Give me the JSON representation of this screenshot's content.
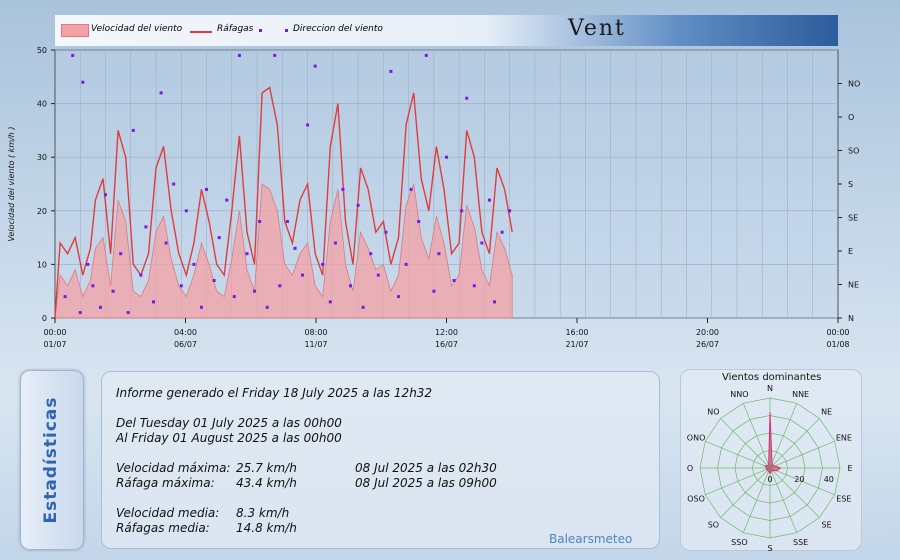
{
  "legend": {
    "items": [
      {
        "label": "Velocidad del viento",
        "kind": "area",
        "color": "#f4a0a4"
      },
      {
        "label": "Ráfagas",
        "kind": "line",
        "color": "#e23b3b"
      },
      {
        "label": "Direccion del viento",
        "kind": "dots",
        "color": "#7a18e6"
      }
    ]
  },
  "header": {
    "title": "Vent"
  },
  "chart_data": {
    "type": "line",
    "ylabel": "Velocidad del viento  ( km/h )",
    "ylim": [
      0,
      50
    ],
    "yticks": [
      "0",
      "10",
      "20",
      "30",
      "40",
      "50"
    ],
    "y2ticks": [
      "N",
      "NE",
      "E",
      "SE",
      "S",
      "SO",
      "O",
      "NO"
    ],
    "xlim_days": [
      0,
      31
    ],
    "xticks": [
      {
        "time": "00:00",
        "date": "01/07"
      },
      {
        "time": "04:00",
        "date": "06/07"
      },
      {
        "time": "08:00",
        "date": "11/07"
      },
      {
        "time": "12:00",
        "date": "16/07"
      },
      {
        "time": "16:00",
        "date": "21/07"
      },
      {
        "time": "20:00",
        "date": "26/07"
      },
      {
        "time": "00:00",
        "date": "01/08"
      }
    ],
    "grid": true,
    "series": [
      {
        "name": "Ráfagas",
        "color": "#e23b3b",
        "x": [
          0.0,
          0.2,
          0.5,
          0.8,
          1.1,
          1.4,
          1.6,
          1.9,
          2.2,
          2.5,
          2.8,
          3.1,
          3.4,
          3.7,
          4.0,
          4.3,
          4.6,
          4.9,
          5.2,
          5.5,
          5.8,
          6.1,
          6.4,
          6.7,
          7.0,
          7.3,
          7.6,
          7.9,
          8.2,
          8.5,
          8.8,
          9.1,
          9.4,
          9.7,
          10.0,
          10.3,
          10.6,
          10.9,
          11.2,
          11.5,
          11.8,
          12.1,
          12.4,
          12.7,
          13.0,
          13.3,
          13.6,
          13.9,
          14.2,
          14.5,
          14.8,
          15.1,
          15.4,
          15.7,
          16.0,
          16.3,
          16.6,
          16.9,
          17.2,
          17.5,
          17.8,
          18.1
        ],
        "values": [
          0,
          14,
          12,
          15,
          8,
          13,
          22,
          26,
          12,
          35,
          30,
          10,
          8,
          12,
          28,
          32,
          20,
          12,
          8,
          14,
          24,
          18,
          10,
          8,
          20,
          34,
          16,
          10,
          42,
          43,
          36,
          18,
          14,
          22,
          25,
          12,
          8,
          32,
          40,
          18,
          10,
          28,
          24,
          16,
          18,
          10,
          15,
          36,
          42,
          26,
          20,
          32,
          24,
          12,
          14,
          35,
          30,
          16,
          12,
          28,
          24,
          16
        ]
      },
      {
        "name": "Velocidad del viento",
        "color": "#f4a0a4",
        "x": [
          0.0,
          0.2,
          0.5,
          0.8,
          1.1,
          1.4,
          1.6,
          1.9,
          2.2,
          2.5,
          2.8,
          3.1,
          3.4,
          3.7,
          4.0,
          4.3,
          4.6,
          4.9,
          5.2,
          5.5,
          5.8,
          6.1,
          6.4,
          6.7,
          7.0,
          7.3,
          7.6,
          7.9,
          8.2,
          8.5,
          8.8,
          9.1,
          9.4,
          9.7,
          10.0,
          10.3,
          10.6,
          10.9,
          11.2,
          11.5,
          11.8,
          12.1,
          12.4,
          12.7,
          13.0,
          13.3,
          13.6,
          13.9,
          14.2,
          14.5,
          14.8,
          15.1,
          15.4,
          15.7,
          16.0,
          16.3,
          16.6,
          16.9,
          17.2,
          17.5,
          17.8,
          18.1
        ],
        "values": [
          0,
          8,
          6,
          9,
          4,
          7,
          13,
          15,
          6,
          22,
          18,
          5,
          4,
          7,
          16,
          19,
          11,
          6,
          4,
          8,
          14,
          10,
          5,
          4,
          11,
          20,
          9,
          5,
          25,
          24,
          20,
          10,
          8,
          12,
          14,
          6,
          4,
          18,
          24,
          10,
          5,
          16,
          13,
          9,
          10,
          5,
          8,
          21,
          25,
          15,
          11,
          19,
          14,
          6,
          8,
          21,
          17,
          9,
          6,
          16,
          13,
          8
        ]
      },
      {
        "name": "Direccion del viento",
        "color": "#7a18e6",
        "x": [
          0.4,
          0.7,
          1.0,
          1.1,
          1.3,
          1.5,
          1.8,
          2.0,
          2.3,
          2.6,
          2.9,
          3.1,
          3.4,
          3.6,
          3.9,
          4.2,
          4.4,
          4.7,
          5.0,
          5.2,
          5.5,
          5.8,
          6.0,
          6.3,
          6.5,
          6.8,
          7.1,
          7.3,
          7.6,
          7.9,
          8.1,
          8.4,
          8.7,
          8.9,
          9.2,
          9.5,
          9.8,
          10.0,
          10.3,
          10.6,
          10.9,
          11.1,
          11.4,
          11.7,
          12.0,
          12.2,
          12.5,
          12.8,
          13.1,
          13.3,
          13.6,
          13.9,
          14.1,
          14.4,
          14.7,
          15.0,
          15.2,
          15.5,
          15.8,
          16.1,
          16.3,
          16.6,
          16.9,
          17.2,
          17.4,
          17.7,
          18.0
        ],
        "values": [
          4,
          49,
          1,
          44,
          10,
          6,
          2,
          23,
          5,
          12,
          1,
          35,
          8,
          17,
          3,
          42,
          14,
          25,
          6,
          20,
          10,
          2,
          24,
          7,
          15,
          22,
          4,
          49,
          12,
          5,
          18,
          2,
          49,
          6,
          18,
          13,
          8,
          36,
          47,
          10,
          3,
          14,
          24,
          6,
          21,
          2,
          12,
          8,
          16,
          46,
          4,
          10,
          24,
          18,
          49,
          5,
          12,
          30,
          7,
          20,
          41,
          6,
          14,
          22,
          3,
          16,
          20
        ]
      }
    ]
  },
  "stats_tab": {
    "label": "Estadísticas"
  },
  "stats": {
    "generated": "Informe generado el Friday 18 July 2025 a las 12h32",
    "from": "Del Tuesday 01 July 2025 a las 00h00",
    "to": "Al Friday 01 August 2025 a las 00h00",
    "rows": [
      {
        "label": "Velocidad máxima:",
        "value": "25.7 km/h",
        "when": "08 Jul 2025 a las 02h30"
      },
      {
        "label": "Ráfaga máxima:",
        "value": "43.4 km/h",
        "when": "08 Jul 2025 a las 09h00"
      },
      {
        "label": "Velocidad media:",
        "value": "8.3 km/h",
        "when": ""
      },
      {
        "label": "Ráfagas media:",
        "value": "14.8 km/h",
        "when": ""
      }
    ],
    "brand": "Balearsmeteo"
  },
  "rose": {
    "title": "Vientos dominantes",
    "directions": [
      "N",
      "NNE",
      "NE",
      "ENE",
      "E",
      "ESE",
      "SE",
      "SSE",
      "S",
      "SSO",
      "SO",
      "OSO",
      "O",
      "ONO",
      "NO",
      "NNO"
    ],
    "scale_labels": [
      "0",
      "20",
      "40"
    ],
    "scale_max": 40,
    "values": [
      32,
      3,
      2,
      3,
      6,
      4,
      2,
      2,
      3,
      2,
      2,
      2,
      2,
      3,
      2,
      2
    ],
    "color": "#d6336c"
  }
}
